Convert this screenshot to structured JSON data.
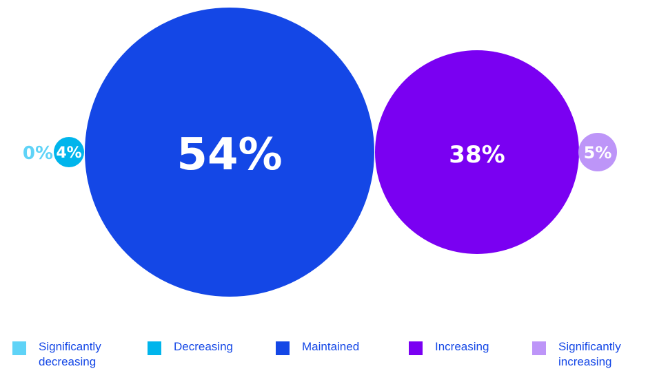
{
  "chart_data": {
    "type": "bubble",
    "title": "",
    "series": [
      {
        "name": "Significantly decreasing",
        "value": 0,
        "label": "0%",
        "color": "#5fd3f7"
      },
      {
        "name": "Decreasing",
        "value": 4,
        "label": "4%",
        "color": "#00b5ec"
      },
      {
        "name": "Maintained",
        "value": 54,
        "label": "54%",
        "color": "#1447e6"
      },
      {
        "name": "Increasing",
        "value": 38,
        "label": "38%",
        "color": "#7a00f2"
      },
      {
        "name": "Significantly increasing",
        "value": 5,
        "label": "5%",
        "color": "#bd95f8"
      }
    ],
    "legend": {
      "placement": "bottom",
      "items": [
        {
          "lines": [
            "Significantly",
            "decreasing"
          ],
          "color": "#5fd3f7"
        },
        {
          "lines": [
            "Decreasing"
          ],
          "color": "#00b5ec"
        },
        {
          "lines": [
            "Maintained"
          ],
          "color": "#1447e6"
        },
        {
          "lines": [
            "Increasing"
          ],
          "color": "#7a00f2"
        },
        {
          "lines": [
            "Significantly",
            "increasing"
          ],
          "color": "#bd95f8"
        }
      ]
    }
  }
}
